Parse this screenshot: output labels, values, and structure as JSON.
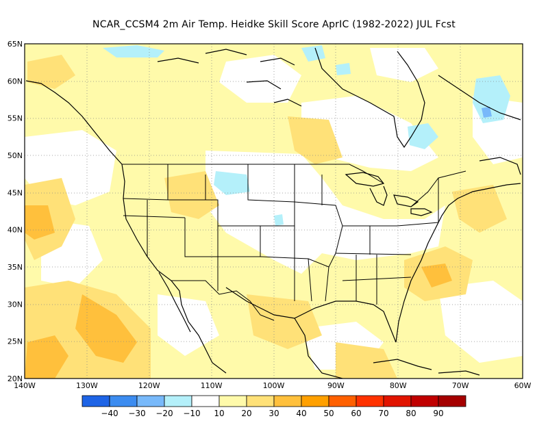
{
  "title": "NCAR_CCSM4  2m Air Temp. Heidke Skill Score AprIC (1982-2022) JUL Fcst",
  "map": {
    "lon_range": [
      -140,
      -60
    ],
    "lat_range": [
      20,
      65
    ],
    "lon_ticks": [
      "140W",
      "130W",
      "120W",
      "110W",
      "100W",
      "90W",
      "80W",
      "70W",
      "60W"
    ],
    "lat_ticks": [
      "20N",
      "25N",
      "30N",
      "35N",
      "40N",
      "45N",
      "50N",
      "55N",
      "60N",
      "65N"
    ],
    "grid": "dotted",
    "features": [
      "coastlines",
      "us-state-borders",
      "country-borders"
    ]
  },
  "legend": {
    "labels": [
      "-40",
      "-30",
      "-20",
      "-10",
      "10",
      "20",
      "30",
      "40",
      "50",
      "60",
      "70",
      "80",
      "90"
    ],
    "colors": [
      "#1e64e6",
      "#3c8cf0",
      "#78b9fa",
      "#b4f0fa",
      "#ffffff",
      "#fffaaa",
      "#ffe178",
      "#ffc03c",
      "#ffa000",
      "#ff6000",
      "#ff3200",
      "#e11400",
      "#c00000",
      "#a50000"
    ]
  }
}
